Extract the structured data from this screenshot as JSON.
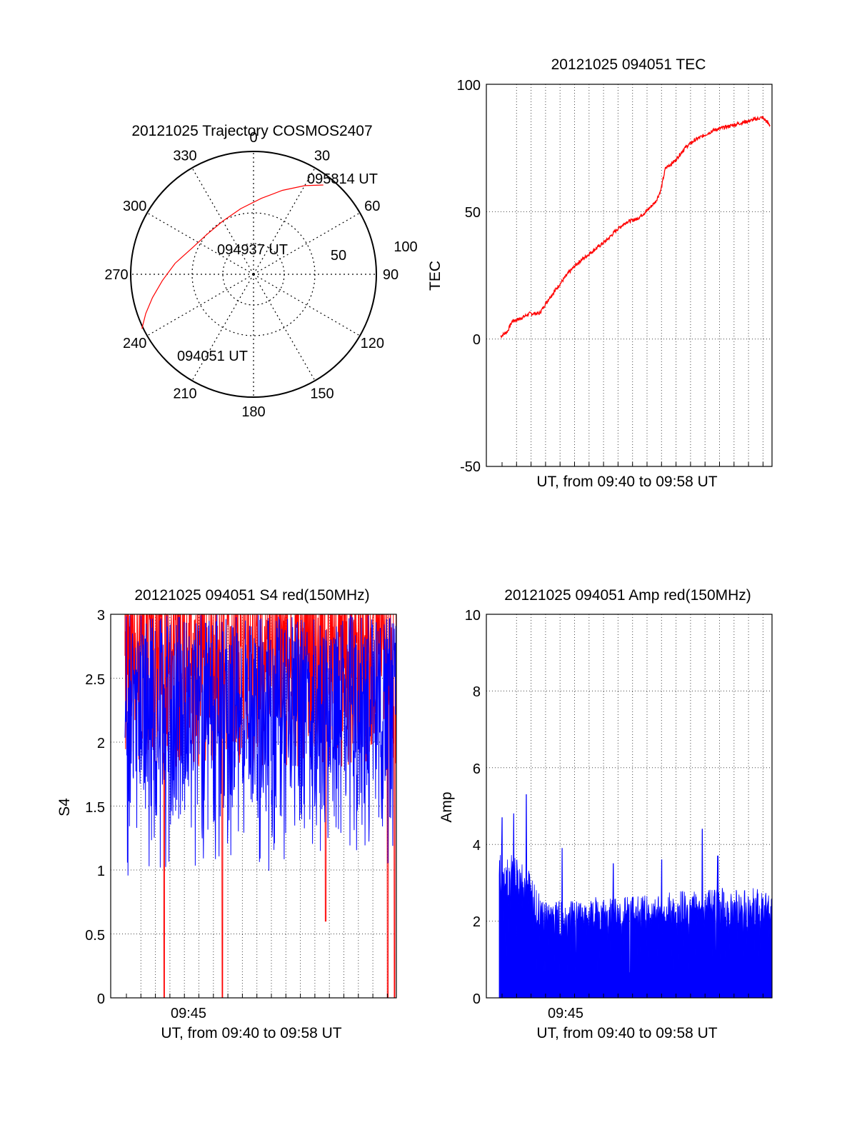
{
  "colors": {
    "red": "#ff0000",
    "blue": "#0000ff",
    "axis": "#000000",
    "grid": "#555555"
  },
  "chart_data": [
    {
      "type": "polar-trajectory",
      "title": "20121025 Trajectory COSMOS2407",
      "azimuth_labels": [
        "0",
        "30",
        "60",
        "90",
        "120",
        "150",
        "180",
        "210",
        "240",
        "270",
        "300",
        "330"
      ],
      "radial_labels": [
        "50",
        "100"
      ],
      "annotations": {
        "start": "094051 UT",
        "mid": "094937 UT",
        "end": "095814 UT"
      },
      "track": [
        {
          "az": 244,
          "zen": 91
        },
        {
          "az": 250,
          "zen": 84
        },
        {
          "az": 257,
          "zen": 76
        },
        {
          "az": 266,
          "zen": 67
        },
        {
          "az": 278,
          "zen": 58
        },
        {
          "az": 293,
          "zen": 49
        },
        {
          "az": 310,
          "zen": 45
        },
        {
          "az": 330,
          "zen": 45
        },
        {
          "az": 349,
          "zen": 49
        },
        {
          "az": 6,
          "zen": 56
        },
        {
          "az": 19,
          "zen": 65
        },
        {
          "az": 30,
          "zen": 75
        },
        {
          "az": 38,
          "zen": 83
        }
      ]
    },
    {
      "type": "line",
      "title": "20121025 094051 TEC",
      "ylabel": "TEC",
      "xlabel": "UT, from 09:40 to 09:58 UT",
      "ylim": [
        -50,
        100
      ],
      "yticks": [
        "100",
        "50",
        "0",
        "-50"
      ],
      "series": [
        {
          "color": "red",
          "points": [
            [
              0,
              1
            ],
            [
              0.7,
              3
            ],
            [
              1.2,
              7
            ],
            [
              2,
              8
            ],
            [
              3,
              10
            ],
            [
              4,
              10
            ],
            [
              5,
              16
            ],
            [
              6,
              21
            ],
            [
              7,
              26
            ],
            [
              8,
              30
            ],
            [
              9,
              33
            ],
            [
              10,
              36
            ],
            [
              11,
              39
            ],
            [
              12,
              43
            ],
            [
              13,
              46
            ],
            [
              14,
              47
            ],
            [
              15,
              50
            ],
            [
              16,
              54
            ],
            [
              16.5,
              58
            ],
            [
              17,
              67
            ],
            [
              18,
              70
            ],
            [
              19,
              75
            ],
            [
              20,
              78
            ],
            [
              21,
              80
            ],
            [
              22,
              82
            ],
            [
              23,
              83
            ],
            [
              24,
              84
            ],
            [
              25,
              85
            ],
            [
              26,
              86
            ],
            [
              27,
              87
            ],
            [
              27.8,
              84
            ]
          ]
        }
      ]
    },
    {
      "type": "line",
      "title": "20121025 094051 S4 red(150MHz)",
      "ylabel": "S4",
      "xlabel": "UT, from 09:40 to 09:58 UT",
      "xticklabel": "09:45",
      "ylim": [
        0,
        3
      ],
      "yticks": [
        "3",
        "2.5",
        "2",
        "1.5",
        "1",
        "0.5",
        "0"
      ],
      "series": [
        {
          "color": "red",
          "typical_range": [
            1.8,
            3.0
          ],
          "dips": [
            [
              4.1,
              0
            ],
            [
              10.2,
              0
            ],
            [
              21,
              0.6
            ],
            [
              27.5,
              0
            ],
            [
              28.2,
              0
            ]
          ]
        },
        {
          "color": "blue",
          "typical_range": [
            1.3,
            3.0
          ],
          "min": 0.95
        }
      ]
    },
    {
      "type": "bar",
      "title": "20121025 094051 Amp red(150MHz)",
      "ylabel": "Amp",
      "xlabel": "UT, from 09:40 to 09:58 UT",
      "xticklabel": "09:45",
      "ylim": [
        0,
        10
      ],
      "yticks": [
        "10",
        "8",
        "6",
        "4",
        "2",
        "0"
      ],
      "series": [
        {
          "color": "blue",
          "envelope": [
            [
              0,
              3.5
            ],
            [
              1,
              3.2
            ],
            [
              2,
              3.0
            ],
            [
              3,
              2.8
            ],
            [
              4,
              2.3
            ],
            [
              5,
              2.1
            ],
            [
              7,
              2.1
            ],
            [
              10,
              2.2
            ],
            [
              14,
              2.2
            ],
            [
              18,
              2.3
            ],
            [
              22,
              2.4
            ],
            [
              26,
              2.4
            ],
            [
              28,
              2.3
            ]
          ],
          "peaks": [
            [
              0.3,
              4.7
            ],
            [
              1.5,
              4.8
            ],
            [
              2.8,
              5.3
            ],
            [
              6.5,
              3.9
            ],
            [
              11.8,
              3.5
            ],
            [
              16.8,
              3.6
            ],
            [
              21,
              4.4
            ],
            [
              22.6,
              3.7
            ]
          ]
        }
      ]
    }
  ]
}
